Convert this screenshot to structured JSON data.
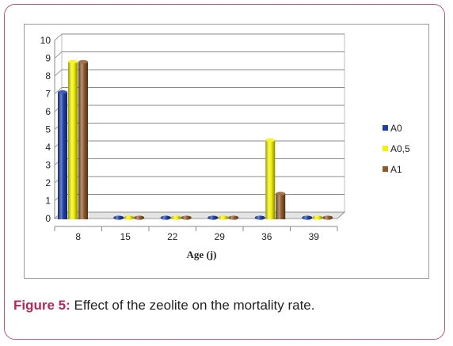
{
  "figure": {
    "label": "Figure 5:",
    "text": "Effect of the zeolite on the mortality rate."
  },
  "chart_data": {
    "type": "bar",
    "xlabel": "Age (j)",
    "ylabel": "",
    "ylim": [
      0,
      10
    ],
    "yticks": [
      "0",
      "1",
      "2",
      "3",
      "4",
      "5",
      "6",
      "7",
      "8",
      "9",
      "10"
    ],
    "categories": [
      "8",
      "15",
      "22",
      "29",
      "36",
      "39"
    ],
    "series": [
      {
        "name": "A0",
        "color": "#1f3fa8",
        "values": [
          7.1,
          0,
          0,
          0,
          0,
          0
        ]
      },
      {
        "name": "A0,5",
        "color": "#f2f200",
        "values": [
          8.8,
          0,
          0,
          0,
          4.4,
          0
        ]
      },
      {
        "name": "A1",
        "color": "#8e5a2b",
        "values": [
          8.8,
          0,
          0,
          0,
          1.4,
          0
        ]
      }
    ],
    "grid": true,
    "legend_position": "right",
    "style": "3d-cylinder"
  }
}
